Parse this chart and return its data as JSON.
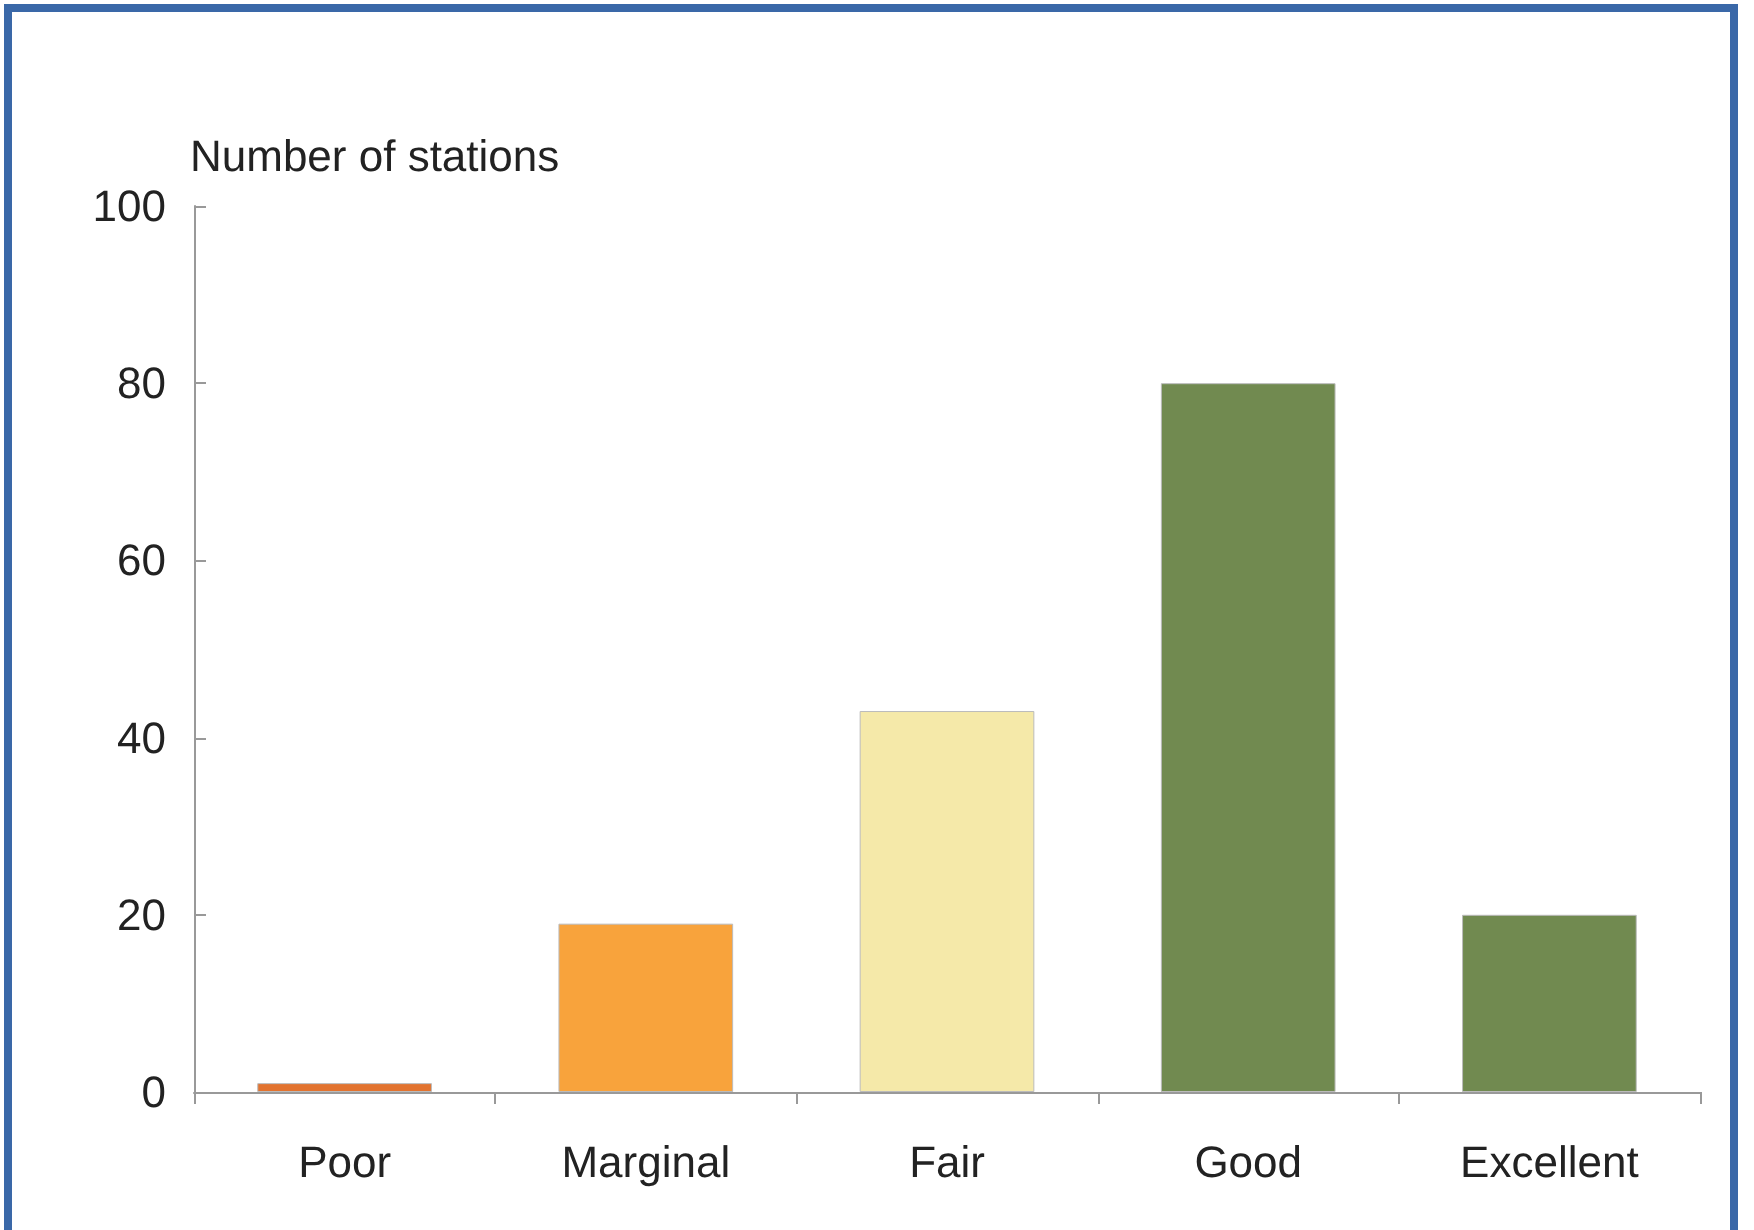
{
  "chart_data": {
    "type": "bar",
    "ylabel": "Number of stations",
    "categories": [
      "Poor",
      "Marginal",
      "Fair",
      "Good",
      "Excellent"
    ],
    "values": [
      1,
      19,
      43,
      80,
      20
    ],
    "colors": [
      "#e2732f",
      "#f8a33c",
      "#f5e9a9",
      "#718a50",
      "#718a50"
    ],
    "ylim": [
      0,
      100
    ],
    "yticks": [
      0,
      20,
      40,
      60,
      80,
      100
    ],
    "grid": false
  }
}
